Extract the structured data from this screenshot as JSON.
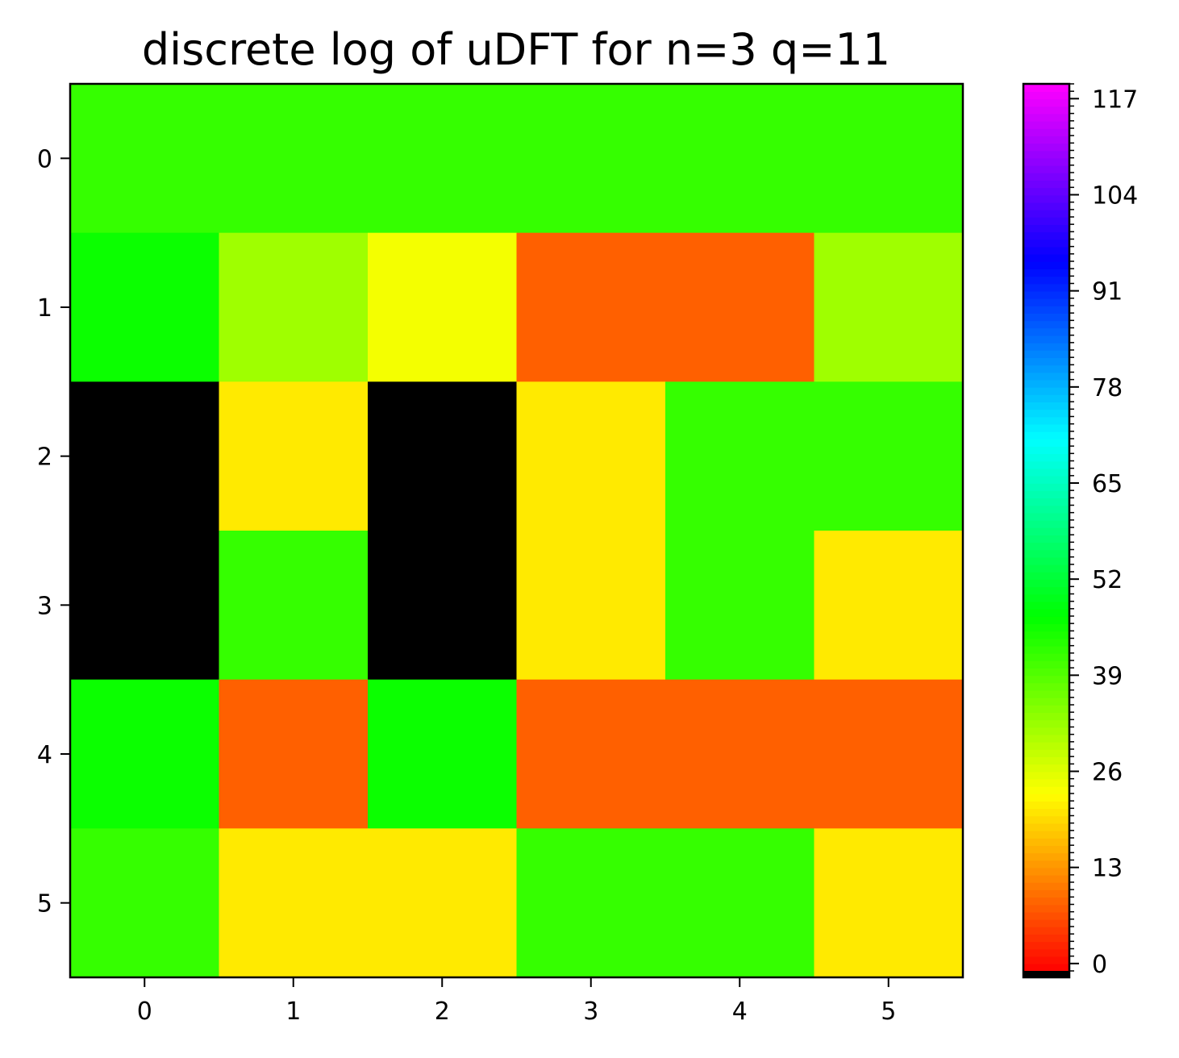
{
  "chart_data": {
    "type": "heatmap",
    "title": "discrete log of uDFT for n=3 q=11",
    "x_ticks": [
      "0",
      "1",
      "2",
      "3",
      "4",
      "5"
    ],
    "y_ticks": [
      "0",
      "1",
      "2",
      "3",
      "4",
      "5"
    ],
    "colorbar": {
      "colormap": "gist_rainbow",
      "range": [
        -1,
        119
      ],
      "ticks": [
        "0",
        "13",
        "26",
        "39",
        "52",
        "65",
        "78",
        "91",
        "104",
        "117"
      ],
      "under_color": "#000000"
    },
    "values": [
      [
        42,
        42,
        42,
        42,
        42,
        42
      ],
      [
        46,
        32,
        24,
        8,
        8,
        32
      ],
      [
        null,
        21,
        null,
        21,
        42,
        42
      ],
      [
        null,
        42,
        null,
        21,
        42,
        21
      ],
      [
        46,
        8,
        46,
        8,
        8,
        8
      ],
      [
        42,
        21,
        21,
        42,
        42,
        21
      ]
    ]
  }
}
